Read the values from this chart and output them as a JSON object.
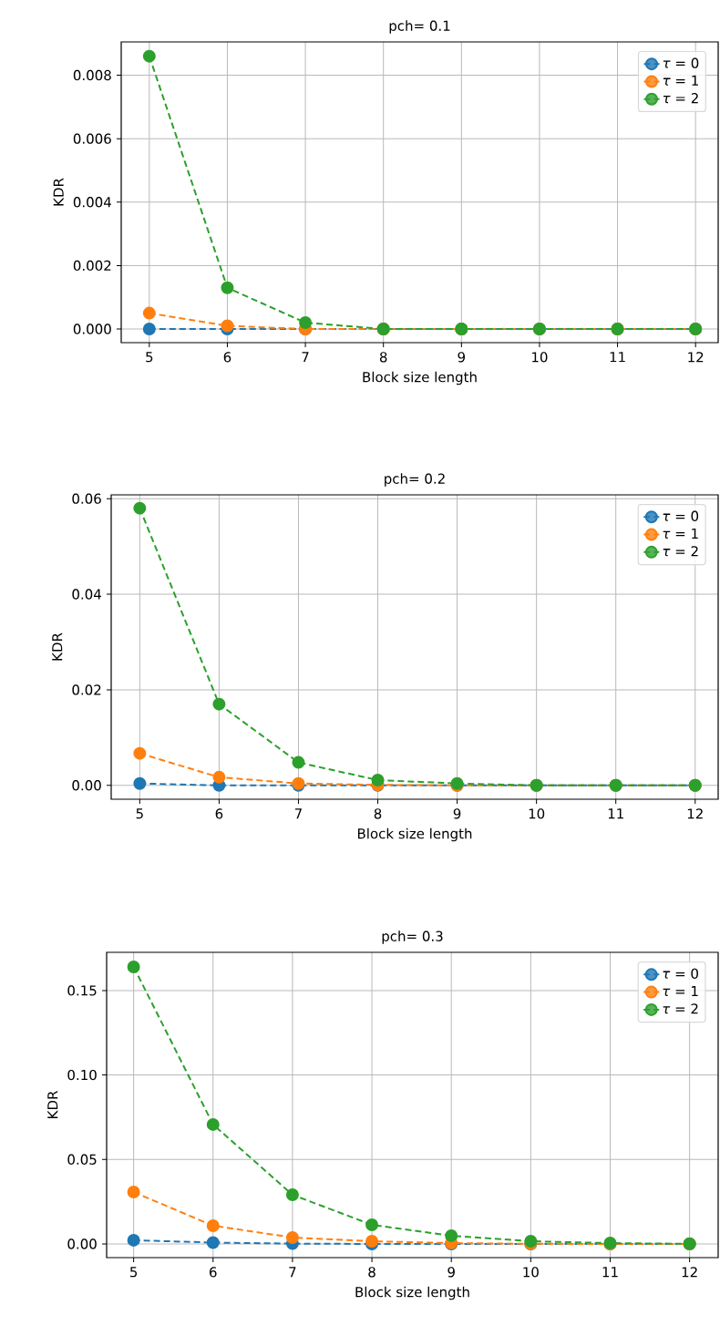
{
  "chart_data": [
    {
      "type": "line",
      "title": "pch= 0.1",
      "xlabel": "Block size length",
      "ylabel": "KDR",
      "x": [
        5,
        6,
        7,
        8,
        9,
        10,
        11,
        12
      ],
      "series": [
        {
          "name": "*τ* = 0",
          "color": "#1f77b4",
          "values": [
            0,
            0,
            0,
            0,
            0,
            0,
            0,
            0
          ]
        },
        {
          "name": "*τ* = 1",
          "color": "#ff7f0e",
          "values": [
            0.0005,
            0.0001,
            0,
            0,
            0,
            0,
            0,
            0
          ]
        },
        {
          "name": "*τ* = 2",
          "color": "#2ca02c",
          "values": [
            0.0086,
            0.0013,
            0.0002,
            0,
            0,
            0,
            0,
            0
          ]
        }
      ],
      "xlim": [
        4.64,
        12.29
      ],
      "ylim": [
        -0.00043,
        0.00905
      ],
      "xticks": [
        5,
        6,
        7,
        8,
        9,
        10,
        11,
        12
      ],
      "yticks": [
        {
          "value": 0,
          "label": "0.000"
        },
        {
          "value": 0.002,
          "label": "0.002"
        },
        {
          "value": 0.004,
          "label": "0.004"
        },
        {
          "value": 0.006,
          "label": "0.006"
        },
        {
          "value": 0.008,
          "label": "0.008"
        }
      ],
      "grid": true,
      "legend": "top right",
      "marker": "circle",
      "line_style": "dashed"
    },
    {
      "type": "line",
      "title": "pch= 0.2",
      "xlabel": "Block size length",
      "ylabel": "KDR",
      "x": [
        5,
        6,
        7,
        8,
        9,
        10,
        11,
        12
      ],
      "series": [
        {
          "name": "*τ* = 0",
          "color": "#1f77b4",
          "values": [
            0.0004,
            0,
            0,
            0,
            0,
            0,
            0,
            0
          ]
        },
        {
          "name": "*τ* = 1",
          "color": "#ff7f0e",
          "values": [
            0.0067,
            0.0017,
            0.0004,
            0.0001,
            0,
            0,
            0,
            0
          ]
        },
        {
          "name": "*τ* = 2",
          "color": "#2ca02c",
          "values": [
            0.058,
            0.017,
            0.0048,
            0.0011,
            0.0004,
            0,
            0,
            0
          ]
        }
      ],
      "xlim": [
        4.64,
        12.29
      ],
      "ylim": [
        -0.0029,
        0.0608
      ],
      "xticks": [
        5,
        6,
        7,
        8,
        9,
        10,
        11,
        12
      ],
      "yticks": [
        {
          "value": 0,
          "label": "0.00"
        },
        {
          "value": 0.02,
          "label": "0.02"
        },
        {
          "value": 0.04,
          "label": "0.04"
        },
        {
          "value": 0.06,
          "label": "0.06"
        }
      ],
      "grid": true,
      "legend": "top right",
      "marker": "circle",
      "line_style": "dashed"
    },
    {
      "type": "line",
      "title": "pch= 0.3",
      "xlabel": "Block size length",
      "ylabel": "KDR",
      "x": [
        5,
        6,
        7,
        8,
        9,
        10,
        11,
        12
      ],
      "series": [
        {
          "name": "*τ* = 0",
          "color": "#1f77b4",
          "values": [
            0.0022,
            0.0008,
            0.0002,
            0,
            0,
            0,
            0,
            0
          ]
        },
        {
          "name": "*τ* = 1",
          "color": "#ff7f0e",
          "values": [
            0.0307,
            0.0108,
            0.0038,
            0.0016,
            0.0005,
            0.0001,
            0,
            0
          ]
        },
        {
          "name": "*τ* = 2",
          "color": "#2ca02c",
          "values": [
            0.164,
            0.0707,
            0.0291,
            0.0113,
            0.0049,
            0.0016,
            0.0005,
            0.0001
          ]
        }
      ],
      "xlim": [
        4.66,
        12.36
      ],
      "ylim": [
        -0.0081,
        0.1726
      ],
      "xticks": [
        5,
        6,
        7,
        8,
        9,
        10,
        11,
        12
      ],
      "yticks": [
        {
          "value": 0,
          "label": "0.00"
        },
        {
          "value": 0.05,
          "label": "0.05"
        },
        {
          "value": 0.1,
          "label": "0.10"
        },
        {
          "value": 0.15,
          "label": "0.15"
        }
      ],
      "grid": true,
      "legend": "top right",
      "marker": "circle",
      "line_style": "dashed"
    }
  ]
}
